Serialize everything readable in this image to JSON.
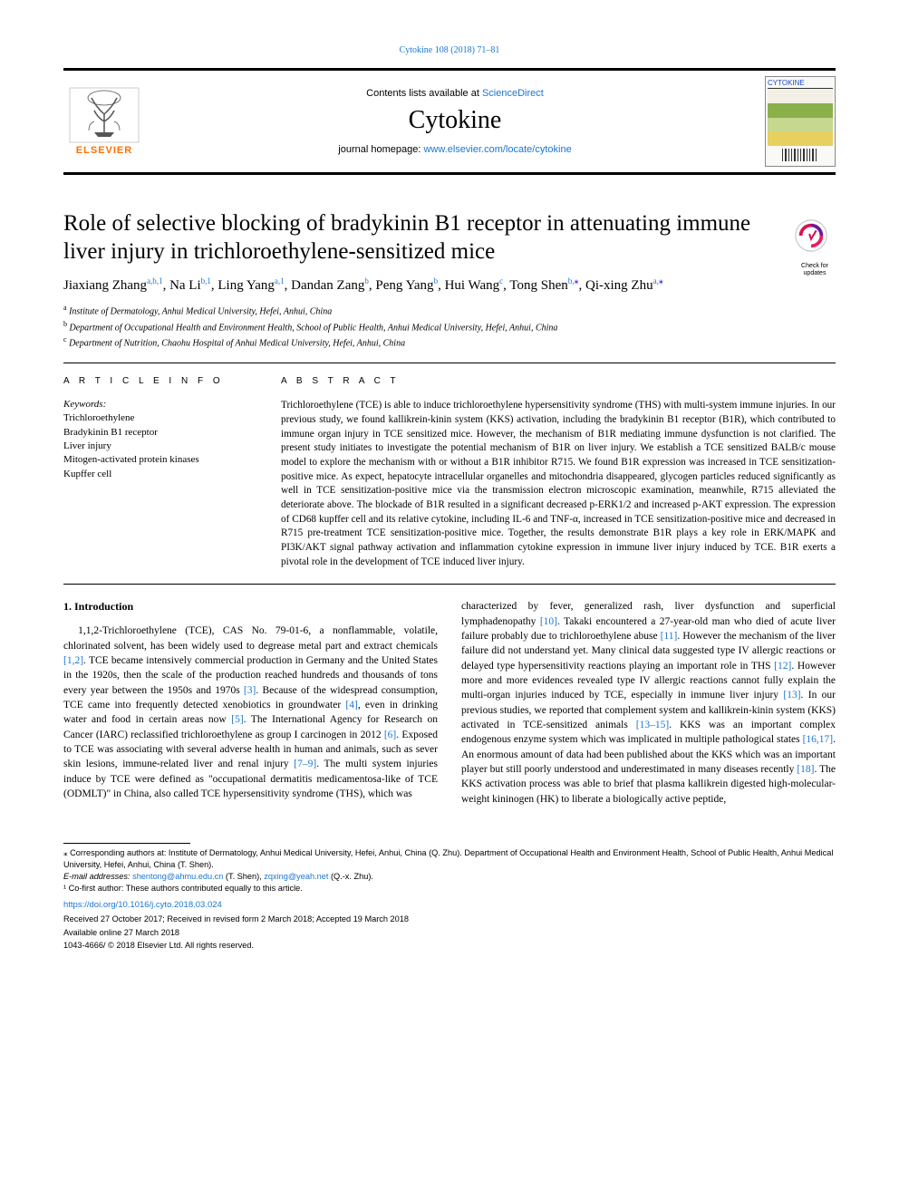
{
  "top": {
    "citation": "Cytokine 108 (2018) 71–81",
    "contents_prefix": "Contents lists available at ",
    "contents_link": "ScienceDirect",
    "journal_name": "Cytokine",
    "homepage_prefix": "journal homepage: ",
    "homepage_link": "www.elsevier.com/locate/cytokine",
    "elsevier": "ELSEVIER",
    "cover_label": "CYTOKINE"
  },
  "title": "Role of selective blocking of bradykinin B1 receptor in attenuating immune liver injury in trichloroethylene-sensitized mice",
  "check_updates": {
    "line1": "Check for",
    "line2": "updates"
  },
  "authors": [
    {
      "name": "Jiaxiang Zhang",
      "sup": "a,b,1"
    },
    {
      "name": "Na Li",
      "sup": "b,1"
    },
    {
      "name": "Ling Yang",
      "sup": "a,1"
    },
    {
      "name": "Dandan Zang",
      "sup": "b"
    },
    {
      "name": "Peng Yang",
      "sup": "b"
    },
    {
      "name": "Hui Wang",
      "sup": "c"
    },
    {
      "name": "Tong Shen",
      "sup": "b,",
      "star": true
    },
    {
      "name": "Qi-xing Zhu",
      "sup": "a,",
      "star": true
    }
  ],
  "affiliations": [
    {
      "sup": "a",
      "text": "Institute of Dermatology, Anhui Medical University, Hefei, Anhui, China"
    },
    {
      "sup": "b",
      "text": "Department of Occupational Health and Environment Health, School of Public Health, Anhui Medical University, Hefei, Anhui, China"
    },
    {
      "sup": "c",
      "text": "Department of Nutrition, Chaohu Hospital of Anhui Medical University, Hefei, Anhui, China"
    }
  ],
  "article_info": {
    "heading": "A R T I C L E  I N F O",
    "keywords_label": "Keywords:",
    "keywords": [
      "Trichloroethylene",
      "Bradykinin B1 receptor",
      "Liver injury",
      "Mitogen-activated protein kinases",
      "Kupffer cell"
    ]
  },
  "abstract": {
    "heading": "A B S T R A C T",
    "text": "Trichloroethylene (TCE) is able to induce trichloroethylene hypersensitivity syndrome (THS) with multi-system immune injuries. In our previous study, we found kallikrein-kinin system (KKS) activation, including the bradykinin B1 receptor (B1R), which contributed to immune organ injury in TCE sensitized mice. However, the mechanism of B1R mediating immune dysfunction is not clarified. The present study initiates to investigate the potential mechanism of B1R on liver injury. We establish a TCE sensitized BALB/c mouse model to explore the mechanism with or without a B1R inhibitor R715. We found B1R expression was increased in TCE sensitization-positive mice. As expect, hepatocyte intracellular organelles and mitochondria disappeared, glycogen particles reduced significantly as well in TCE sensitization-positive mice via the transmission electron microscopic examination, meanwhile, R715 alleviated the deteriorate above. The blockade of B1R resulted in a significant decreased p-ERK1/2 and increased p-AKT expression. The expression of CD68 kupffer cell and its relative cytokine, including IL-6 and TNF-α, increased in TCE sensitization-positive mice and decreased in R715 pre-treatment TCE sensitization-positive mice. Together, the results demonstrate B1R plays a key role in ERK/MAPK and PI3K/AKT signal pathway activation and inflammation cytokine expression in immune liver injury induced by TCE. B1R exerts a pivotal role in the development of TCE induced liver injury."
  },
  "intro": {
    "heading": "1. Introduction",
    "col1": {
      "text": "1,1,2-Trichloroethylene (TCE), CAS No. 79-01-6, a nonflammable, volatile, chlorinated solvent, has been widely used to degrease metal part and extract chemicals [1,2]. TCE became intensively commercial production in Germany and the United States in the 1920s, then the scale of the production reached hundreds and thousands of tons every year between the 1950s and 1970s [3]. Because of the widespread consumption, TCE came into frequently detected xenobiotics in groundwater [4], even in drinking water and food in certain areas now [5]. The International Agency for Research on Cancer (IARC) reclassified trichloroethylene as group I carcinogen in 2012 [6]. Exposed to TCE was associating with several adverse health in human and animals, such as sever skin lesions, immune-related liver and renal injury [7–9]. The multi system injuries induce by TCE were defined as \"occupational dermatitis medicamentosa-like of TCE (ODMLT)\" in China, also called TCE hypersensitivity syndrome (THS), which was",
      "refs": [
        "[1,2]",
        "[3]",
        "[4]",
        "[5]",
        "[6]",
        "[7–9]"
      ]
    },
    "col2": {
      "text": "characterized by fever, generalized rash, liver dysfunction and superficial lymphadenopathy [10]. Takaki encountered a 27-year-old man who died of acute liver failure probably due to trichloroethylene abuse [11]. However the mechanism of the liver failure did not understand yet. Many clinical data suggested type IV allergic reactions or delayed type hypersensitivity reactions playing an important role in THS [12]. However more and more evidences revealed type IV allergic reactions cannot fully explain the multi-organ injuries induced by TCE, especially in immune liver injury [13]. In our previous studies, we reported that complement system and kallikrein-kinin system (KKS) activated in TCE-sensitized animals [13–15]. KKS was an important complex endogenous enzyme system which was implicated in multiple pathological states [16,17]. An enormous amount of data had been published about the KKS which was an important player but still poorly understood and underestimated in many diseases recently [18]. The KKS activation process was able to brief that plasma kallikrein digested high-molecular-weight kininogen (HK) to liberate a biologically active peptide,",
      "refs": [
        "[10]",
        "[11]",
        "[12]",
        "[13]",
        "[13–15]",
        "[16,17]",
        "[18]"
      ]
    }
  },
  "footer": {
    "corresponding": "⁎ Corresponding authors at: Institute of Dermatology, Anhui Medical University, Hefei, Anhui, China (Q. Zhu). Department of Occupational Health and Environment Health, School of Public Health, Anhui Medical University, Hefei, Anhui, China (T. Shen).",
    "email_label": "E-mail addresses: ",
    "emails": "shentong@ahmu.edu.cn (T. Shen), zqxing@yeah.net (Q.-x. Zhu).",
    "cofirst": "¹ Co-first author: These authors contributed equally to this article.",
    "doi": "https://doi.org/10.1016/j.cyto.2018.03.024",
    "dates": "Received 27 October 2017; Received in revised form 2 March 2018; Accepted 19 March 2018",
    "online": "Available online 27 March 2018",
    "copyright": "1043-4666/ © 2018 Elsevier Ltd. All rights reserved."
  },
  "colors": {
    "link": "#1976d2",
    "elsevier_orange": "#ff6f00",
    "check_pink": "#d41459",
    "cover_blue": "#1a4cc7",
    "cover_green": "#8bb04a",
    "cover_yellow": "#e8d060"
  }
}
